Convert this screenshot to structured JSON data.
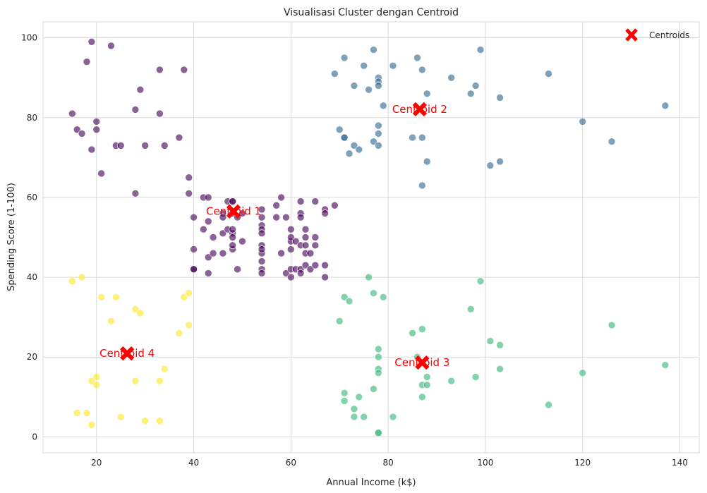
{
  "chart_data": {
    "type": "scatter",
    "title": "Visualisasi Cluster dengan Centroid",
    "xlabel": "Annual Income (k$)",
    "ylabel": "Spending Score (1-100)",
    "xlim": [
      9,
      144
    ],
    "ylim": [
      -4,
      104
    ],
    "xticks": [
      "20",
      "40",
      "60",
      "80",
      "100",
      "120",
      "140"
    ],
    "yticks": [
      "0",
      "20",
      "40",
      "60",
      "80",
      "100"
    ],
    "grid": true,
    "legend": {
      "position": "top-right",
      "entries": [
        "Centroids"
      ]
    },
    "colors": {
      "cluster_0": "#440154",
      "cluster_1": "#31688e",
      "cluster_2": "#35b779",
      "cluster_3": "#fde725",
      "centroid": "#ff0000",
      "grid": "#d9d9d9",
      "background": "#ffffff"
    },
    "series": [
      {
        "cluster": 0,
        "points": [
          [
            15,
            81
          ],
          [
            16,
            77
          ],
          [
            17,
            76
          ],
          [
            18,
            94
          ],
          [
            19,
            99
          ],
          [
            19,
            72
          ],
          [
            20,
            79
          ],
          [
            20,
            77
          ],
          [
            21,
            66
          ],
          [
            23,
            98
          ],
          [
            24,
            73
          ],
          [
            25,
            73
          ],
          [
            28,
            82
          ],
          [
            28,
            61
          ],
          [
            29,
            87
          ],
          [
            30,
            73
          ],
          [
            33,
            92
          ],
          [
            33,
            81
          ],
          [
            34,
            73
          ],
          [
            37,
            75
          ],
          [
            38,
            92
          ],
          [
            39,
            65
          ],
          [
            39,
            61
          ],
          [
            40,
            55
          ],
          [
            40,
            47
          ],
          [
            40,
            42
          ],
          [
            40,
            42
          ],
          [
            42,
            60
          ],
          [
            42,
            52
          ],
          [
            43,
            60
          ],
          [
            43,
            54
          ],
          [
            43,
            45
          ],
          [
            43,
            41
          ],
          [
            44,
            50
          ],
          [
            44,
            46
          ],
          [
            46,
            56
          ],
          [
            46,
            51
          ],
          [
            46,
            46
          ],
          [
            46,
            55
          ],
          [
            47,
            52
          ],
          [
            47,
            59
          ],
          [
            48,
            59
          ],
          [
            48,
            59
          ],
          [
            48,
            56
          ],
          [
            48,
            51
          ],
          [
            48,
            50
          ],
          [
            48,
            47
          ],
          [
            48,
            48
          ],
          [
            48,
            52
          ],
          [
            49,
            55
          ],
          [
            49,
            42
          ],
          [
            50,
            49
          ],
          [
            50,
            56
          ],
          [
            54,
            57
          ],
          [
            54,
            55
          ],
          [
            54,
            53
          ],
          [
            54,
            52
          ],
          [
            54,
            51
          ],
          [
            54,
            48
          ],
          [
            54,
            46
          ],
          [
            54,
            47
          ],
          [
            54,
            44
          ],
          [
            54,
            42
          ],
          [
            54,
            41
          ],
          [
            57,
            58
          ],
          [
            57,
            55
          ],
          [
            58,
            60
          ],
          [
            58,
            46
          ],
          [
            59,
            55
          ],
          [
            59,
            41
          ],
          [
            60,
            52
          ],
          [
            60,
            49
          ],
          [
            60,
            47
          ],
          [
            60,
            42
          ],
          [
            60,
            40
          ],
          [
            60,
            50
          ],
          [
            61,
            49
          ],
          [
            61,
            42
          ],
          [
            62,
            59
          ],
          [
            62,
            56
          ],
          [
            62,
            55
          ],
          [
            62,
            48
          ],
          [
            62,
            42
          ],
          [
            62,
            41
          ],
          [
            63,
            52
          ],
          [
            63,
            50
          ],
          [
            63,
            48
          ],
          [
            63,
            46
          ],
          [
            63,
            43
          ],
          [
            64,
            46
          ],
          [
            64,
            42
          ],
          [
            65,
            59
          ],
          [
            65,
            50
          ],
          [
            65,
            48
          ],
          [
            65,
            43
          ],
          [
            67,
            57
          ],
          [
            67,
            56
          ],
          [
            67,
            43
          ],
          [
            67,
            40
          ],
          [
            69,
            58
          ]
        ]
      },
      {
        "cluster": 1,
        "points": [
          [
            69,
            91
          ],
          [
            70,
            77
          ],
          [
            71,
            95
          ],
          [
            71,
            75
          ],
          [
            71,
            75
          ],
          [
            72,
            71
          ],
          [
            73,
            88
          ],
          [
            73,
            73
          ],
          [
            74,
            72
          ],
          [
            75,
            93
          ],
          [
            76,
            87
          ],
          [
            77,
            97
          ],
          [
            77,
            74
          ],
          [
            78,
            90
          ],
          [
            78,
            89
          ],
          [
            78,
            88
          ],
          [
            78,
            78
          ],
          [
            78,
            76
          ],
          [
            78,
            73
          ],
          [
            79,
            83
          ],
          [
            81,
            93
          ],
          [
            85,
            75
          ],
          [
            86,
            95
          ],
          [
            87,
            92
          ],
          [
            87,
            75
          ],
          [
            87,
            63
          ],
          [
            88,
            86
          ],
          [
            88,
            69
          ],
          [
            93,
            90
          ],
          [
            97,
            86
          ],
          [
            98,
            88
          ],
          [
            99,
            97
          ],
          [
            101,
            68
          ],
          [
            103,
            85
          ],
          [
            103,
            69
          ],
          [
            113,
            91
          ],
          [
            120,
            79
          ],
          [
            126,
            74
          ],
          [
            137,
            83
          ]
        ]
      },
      {
        "cluster": 2,
        "points": [
          [
            70,
            29
          ],
          [
            71,
            35
          ],
          [
            71,
            11
          ],
          [
            71,
            9
          ],
          [
            72,
            34
          ],
          [
            73,
            7
          ],
          [
            73,
            5
          ],
          [
            74,
            10
          ],
          [
            75,
            5
          ],
          [
            76,
            40
          ],
          [
            77,
            36
          ],
          [
            77,
            12
          ],
          [
            78,
            22
          ],
          [
            78,
            20
          ],
          [
            78,
            17
          ],
          [
            78,
            16
          ],
          [
            78,
            1
          ],
          [
            78,
            1
          ],
          [
            79,
            35
          ],
          [
            81,
            5
          ],
          [
            85,
            26
          ],
          [
            86,
            20
          ],
          [
            87,
            27
          ],
          [
            87,
            13
          ],
          [
            87,
            10
          ],
          [
            88,
            15
          ],
          [
            88,
            13
          ],
          [
            93,
            14
          ],
          [
            97,
            32
          ],
          [
            98,
            15
          ],
          [
            99,
            39
          ],
          [
            101,
            24
          ],
          [
            103,
            23
          ],
          [
            103,
            17
          ],
          [
            113,
            8
          ],
          [
            120,
            16
          ],
          [
            126,
            28
          ],
          [
            137,
            18
          ]
        ]
      },
      {
        "cluster": 3,
        "points": [
          [
            15,
            39
          ],
          [
            16,
            6
          ],
          [
            17,
            40
          ],
          [
            18,
            6
          ],
          [
            19,
            3
          ],
          [
            19,
            14
          ],
          [
            20,
            15
          ],
          [
            20,
            13
          ],
          [
            21,
            35
          ],
          [
            23,
            29
          ],
          [
            24,
            35
          ],
          [
            25,
            5
          ],
          [
            28,
            14
          ],
          [
            28,
            32
          ],
          [
            29,
            31
          ],
          [
            30,
            4
          ],
          [
            33,
            4
          ],
          [
            33,
            14
          ],
          [
            34,
            17
          ],
          [
            37,
            26
          ],
          [
            38,
            35
          ],
          [
            39,
            36
          ],
          [
            39,
            28
          ]
        ]
      }
    ],
    "centroids": [
      {
        "label": "Centroid 1",
        "x": 48.2,
        "y": 56.5
      },
      {
        "label": "Centroid 2",
        "x": 86.5,
        "y": 82.1
      },
      {
        "label": "Centroid 3",
        "x": 87.0,
        "y": 18.6
      },
      {
        "label": "Centroid 4",
        "x": 26.3,
        "y": 20.9
      }
    ]
  }
}
